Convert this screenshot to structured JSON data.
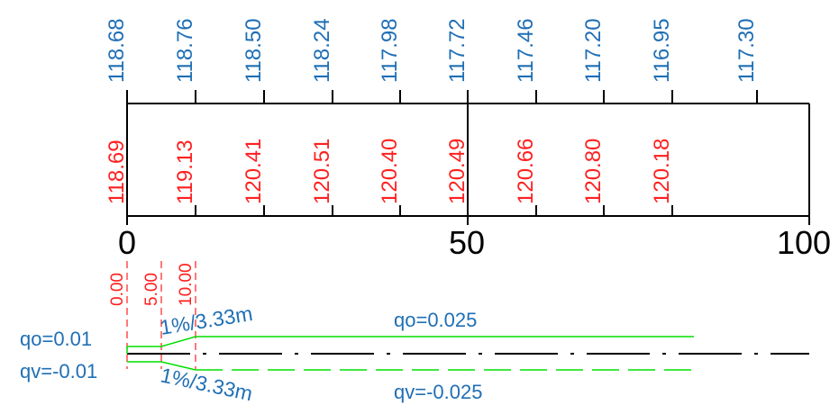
{
  "colors": {
    "blue": "#1f6fb5",
    "red": "#ff2020",
    "green": "#00e000",
    "black": "#000000"
  },
  "top_profile": {
    "blue_values": [
      "118.68",
      "118.76",
      "118.50",
      "118.24",
      "117.98",
      "117.72",
      "117.46",
      "117.20",
      "116.95",
      "117.30"
    ],
    "red_values": [
      "118.69",
      "119.13",
      "120.41",
      "120.51",
      "120.40",
      "120.49",
      "120.66",
      "120.80",
      "120.18"
    ],
    "axis_ticks": [
      "0",
      "50",
      "100"
    ]
  },
  "cross_section": {
    "offsets": [
      "0.00",
      "5.00",
      "10.00"
    ],
    "slope_upper": "1%/3.33m",
    "slope_lower": "1%/3.33m",
    "qo_left": "qo=0.01",
    "qv_left": "qv=-0.01",
    "qo_right": "qo=0.025",
    "qv_right": "qv=-0.025"
  }
}
